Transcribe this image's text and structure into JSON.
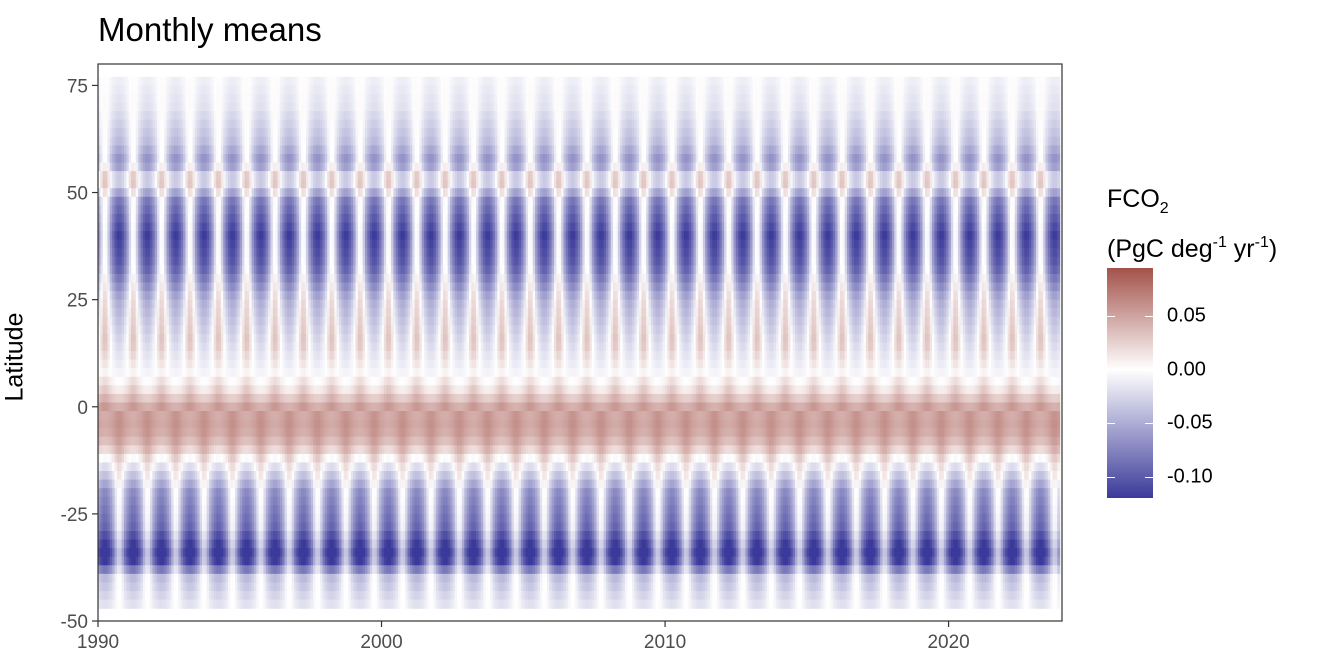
{
  "chart_data": {
    "type": "heatmap",
    "title": "Monthly means",
    "xlabel": "",
    "ylabel": "Latitude",
    "xlim": [
      1990,
      2024
    ],
    "ylim": [
      -50,
      80
    ],
    "x_ticks": [
      1990,
      2000,
      2010,
      2020
    ],
    "y_ticks": [
      75,
      50,
      25,
      0,
      -25,
      -50
    ],
    "x_tick_labels": [
      "1990",
      "2000",
      "2010",
      "2020"
    ],
    "y_tick_labels": [
      "75",
      "50",
      "25",
      "0",
      "-25",
      "-50"
    ],
    "x_start": 1990,
    "x_end": 2023.9,
    "data_lat_max": 77,
    "data_lat_min": -47,
    "grid": false,
    "seasonal_cycle": "annual, one cycle per year",
    "latitude_profile": [
      {
        "lat": 77,
        "amplitude": 0.008,
        "mean": -0.004
      },
      {
        "lat": 70,
        "amplitude": 0.015,
        "mean": -0.008
      },
      {
        "lat": 62,
        "amplitude": 0.03,
        "mean": -0.02
      },
      {
        "lat": 57,
        "amplitude": 0.05,
        "mean": -0.035
      },
      {
        "lat": 53,
        "amplitude": 0.04,
        "mean": 0.01
      },
      {
        "lat": 48,
        "amplitude": 0.06,
        "mean": -0.04
      },
      {
        "lat": 40,
        "amplitude": 0.08,
        "mean": -0.06
      },
      {
        "lat": 33,
        "amplitude": 0.07,
        "mean": -0.05
      },
      {
        "lat": 25,
        "amplitude": 0.05,
        "mean": -0.015
      },
      {
        "lat": 15,
        "amplitude": 0.04,
        "mean": 0.005
      },
      {
        "lat": 8,
        "amplitude": 0.01,
        "mean": 0.0
      },
      {
        "lat": 4,
        "amplitude": 0.015,
        "mean": 0.02
      },
      {
        "lat": 0,
        "amplitude": 0.01,
        "mean": 0.05
      },
      {
        "lat": -5,
        "amplitude": 0.01,
        "mean": 0.055
      },
      {
        "lat": -9,
        "amplitude": 0.015,
        "mean": 0.04
      },
      {
        "lat": -13,
        "amplitude": 0.025,
        "mean": 0.005
      },
      {
        "lat": -20,
        "amplitude": 0.05,
        "mean": -0.035
      },
      {
        "lat": -28,
        "amplitude": 0.06,
        "mean": -0.05
      },
      {
        "lat": -35,
        "amplitude": 0.07,
        "mean": -0.09
      },
      {
        "lat": -40,
        "amplitude": 0.03,
        "mean": -0.02
      },
      {
        "lat": -47,
        "amplitude": 0.01,
        "mean": -0.008
      }
    ],
    "legend": {
      "title_line1": "FCO",
      "title_sub": "2",
      "title_line2_a": "(PgC deg",
      "title_sup1": "-1",
      "title_line2_b": " yr",
      "title_sup2": "-1",
      "title_line2_c": ")",
      "range": [
        -0.12,
        0.095
      ],
      "ticks": [
        0.05,
        0.0,
        -0.05,
        -0.1
      ],
      "tick_labels": [
        "0.05",
        "0.00",
        "-0.05",
        "-0.10"
      ],
      "colors": {
        "low": "#3B3A9A",
        "mid": "#FFFFFF",
        "high": "#A3524A"
      }
    }
  }
}
